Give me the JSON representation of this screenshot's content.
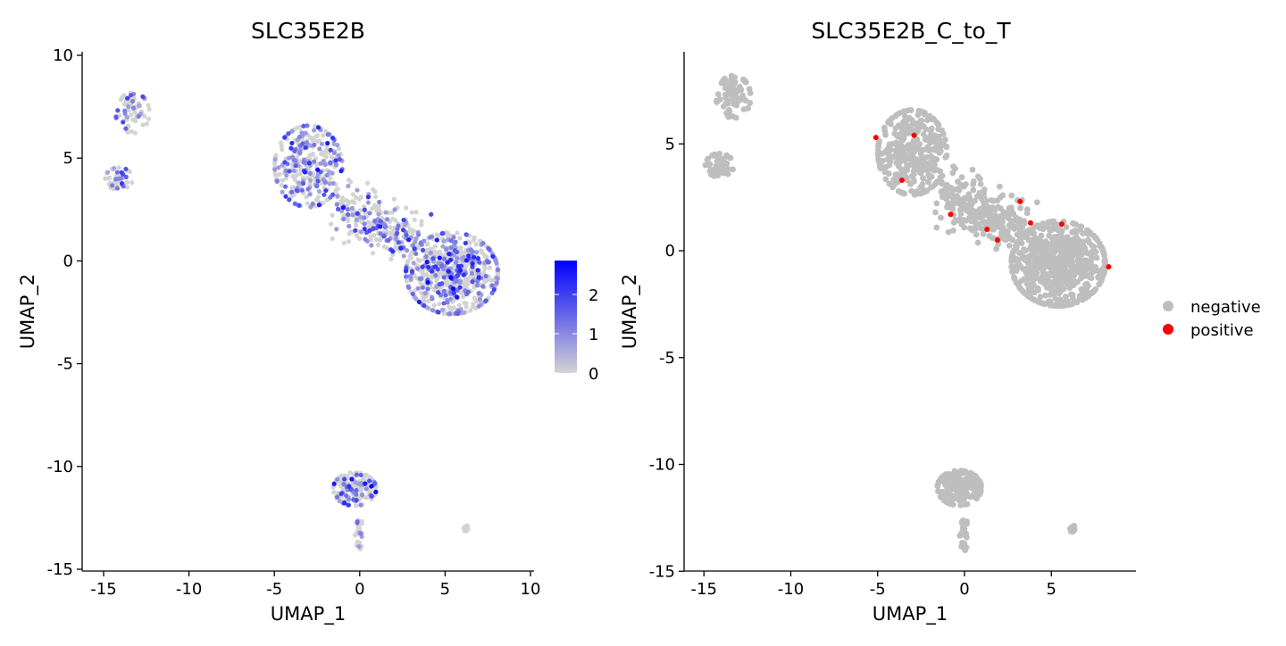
{
  "chart_data": [
    {
      "type": "scatter",
      "title": "SLC35E2B",
      "xlabel": "UMAP_1",
      "ylabel": "UMAP_2",
      "xlim": [
        -16.2,
        10.2
      ],
      "ylim": [
        -15.1,
        10.0
      ],
      "xticks": [
        -15,
        -10,
        -5,
        0,
        5,
        10
      ],
      "yticks": [
        -15,
        -10,
        -5,
        0,
        5,
        10
      ],
      "xtick_labels": [
        "-15",
        "-10",
        "-5",
        "0",
        "5",
        "10"
      ],
      "ytick_labels": [
        "-15",
        "-10",
        "-5",
        "0",
        "5",
        "10"
      ],
      "color_scale": {
        "low": "#d3d3d3",
        "high": "#0000ff",
        "min": 0,
        "max": 2.86,
        "ticks": [
          0,
          1,
          2
        ],
        "tick_labels": [
          "0",
          "1",
          "2"
        ]
      },
      "clusters": [
        {
          "name": "top-left",
          "cx": -13.3,
          "cy": 7.2,
          "sx": 0.55,
          "sy": 0.55,
          "n": 70,
          "expr_frac": 0.35
        },
        {
          "name": "left",
          "cx": -14.1,
          "cy": 4.0,
          "sx": 0.45,
          "sy": 0.3,
          "n": 50,
          "expr_frac": 0.3
        },
        {
          "name": "upper-main",
          "cx": -3.0,
          "cy": 4.6,
          "sx": 1.1,
          "sy": 1.1,
          "n": 320,
          "expr_frac": 0.4
        },
        {
          "name": "bridge",
          "cx": 0.8,
          "cy": 1.8,
          "sx": 1.5,
          "sy": 0.7,
          "n": 260,
          "expr_frac": 0.35
        },
        {
          "name": "lower-main",
          "cx": 5.4,
          "cy": -0.6,
          "sx": 1.5,
          "sy": 1.1,
          "n": 650,
          "expr_frac": 0.35
        },
        {
          "name": "bottom",
          "cx": -0.3,
          "cy": -11.1,
          "sx": 0.7,
          "sy": 0.45,
          "n": 170,
          "expr_frac": 0.3
        },
        {
          "name": "bottom-tail",
          "cx": 0.0,
          "cy": -13.3,
          "sx": 0.15,
          "sy": 0.4,
          "n": 25,
          "expr_frac": 0.2
        },
        {
          "name": "small",
          "cx": 6.2,
          "cy": -13.0,
          "sx": 0.1,
          "sy": 0.08,
          "n": 10,
          "expr_frac": 0.0
        }
      ]
    },
    {
      "type": "scatter",
      "title": "SLC35E2B_C_to_T",
      "xlabel": "UMAP_1",
      "ylabel": "UMAP_2",
      "xlim": [
        -16.2,
        9.8
      ],
      "ylim": [
        -15.1,
        9.3
      ],
      "xticks": [
        -15,
        -10,
        -5,
        0,
        5
      ],
      "yticks": [
        -15,
        -10,
        -5,
        0,
        5
      ],
      "xtick_labels": [
        "-15",
        "-10",
        "-5",
        "0",
        "5"
      ],
      "ytick_labels": [
        "-15",
        "-10",
        "-5",
        "0",
        "5"
      ],
      "legend": {
        "position": "right",
        "entries": [
          {
            "label": "negative",
            "color": "#bebebe"
          },
          {
            "label": "positive",
            "color": "#ff0000"
          }
        ]
      },
      "positive_points": [
        {
          "x": -5.1,
          "y": 5.3
        },
        {
          "x": -2.9,
          "y": 5.4
        },
        {
          "x": -3.6,
          "y": 3.3
        },
        {
          "x": 3.2,
          "y": 2.3
        },
        {
          "x": -0.8,
          "y": 1.7
        },
        {
          "x": 3.8,
          "y": 1.3
        },
        {
          "x": 5.6,
          "y": 1.25
        },
        {
          "x": 1.3,
          "y": 1.0
        },
        {
          "x": 1.9,
          "y": 0.5
        },
        {
          "x": 8.3,
          "y": -0.75
        }
      ]
    }
  ]
}
